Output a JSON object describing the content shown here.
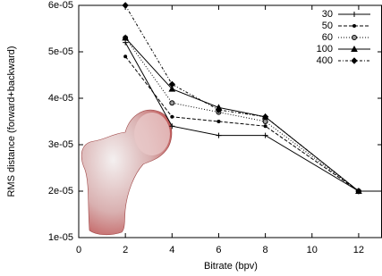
{
  "chart_data": {
    "type": "line",
    "x_label": "Bitrate (bpv)",
    "y_label": "RMS distance (forward+backward)",
    "x": [
      2,
      4,
      6,
      8,
      12,
      13
    ],
    "xlim": [
      0,
      13
    ],
    "xticks": [
      0,
      2,
      4,
      6,
      8,
      10,
      12
    ],
    "ylim": [
      1e-05,
      6e-05
    ],
    "yticks": [
      {
        "value": 1e-05,
        "label": "1e-05"
      },
      {
        "value": 2e-05,
        "label": "2e-05"
      },
      {
        "value": 3e-05,
        "label": "3e-05"
      },
      {
        "value": 4e-05,
        "label": "4e-05"
      },
      {
        "value": 5e-05,
        "label": "5e-05"
      },
      {
        "value": 6e-05,
        "label": "6e-05"
      }
    ],
    "legend": "top-right",
    "series": [
      {
        "name": "30",
        "color": "#000000",
        "dash": "solid",
        "marker": "plus",
        "values": [
          5.2e-05,
          3.4e-05,
          3.2e-05,
          3.2e-05,
          2e-05,
          2e-05
        ]
      },
      {
        "name": "50",
        "color": "#000000",
        "dash": "dashed",
        "marker": "dot",
        "values": [
          4.9e-05,
          3.6e-05,
          3.5e-05,
          3.4e-05,
          2e-05,
          null
        ]
      },
      {
        "name": "60",
        "color": "#000000",
        "dash": "dotted",
        "marker": "circle",
        "values": [
          5.3e-05,
          3.9e-05,
          3.7e-05,
          3.5e-05,
          2e-05,
          null
        ]
      },
      {
        "name": "100",
        "color": "#000000",
        "dash": "solid",
        "marker": "triangle",
        "values": [
          5.3e-05,
          4.2e-05,
          3.8e-05,
          3.6e-05,
          2e-05,
          null
        ]
      },
      {
        "name": "400",
        "color": "#000000",
        "dash": "dashdot",
        "marker": "diamond",
        "values": [
          6e-05,
          4.3e-05,
          3.75e-05,
          3.6e-05,
          2e-05,
          null
        ]
      }
    ]
  }
}
